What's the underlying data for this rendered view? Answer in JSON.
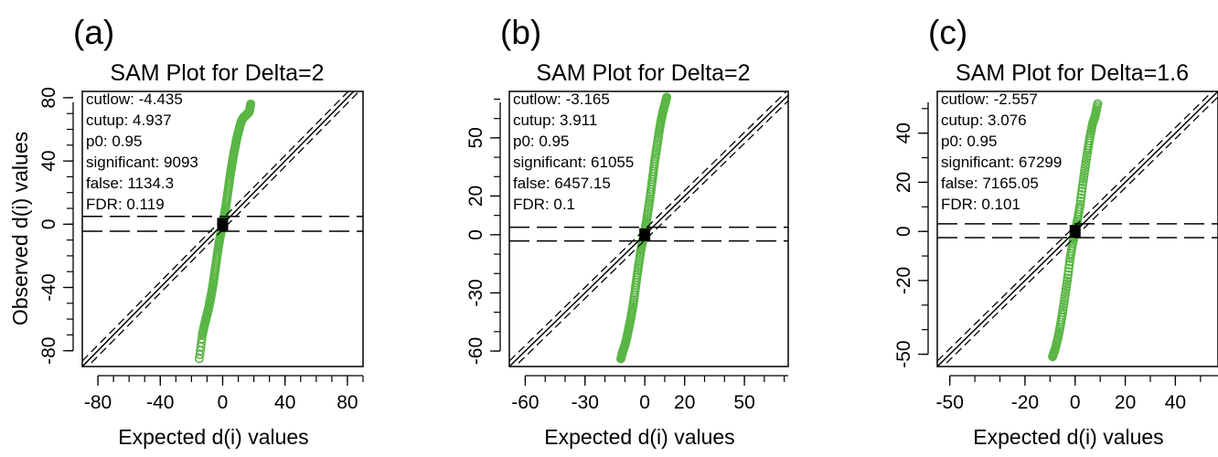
{
  "figure": {
    "ylabel": "Observed d(i) values",
    "xlabel": "Expected d(i) values"
  },
  "chart_data": [
    {
      "type": "scatter",
      "panel_label": "(a)",
      "title": "SAM Plot for Delta=2",
      "xlabel": "Expected d(i) values",
      "ylabel": "Observed d(i) values",
      "xlim": [
        -90,
        90
      ],
      "ylim": [
        -90,
        84
      ],
      "xticks": [
        -80,
        -40,
        0,
        40,
        80
      ],
      "yticks": [
        -80,
        -40,
        0,
        40,
        80
      ],
      "xtick_labels": [
        "-80",
        "-40",
        "0",
        "40",
        "80"
      ],
      "ytick_labels": [
        "-80",
        "-40",
        "0",
        "40",
        "80"
      ],
      "x_minor_step": 10,
      "y_minor_step": 10,
      "cutup": 4.937,
      "cutlow": -4.435,
      "stats": [
        "cutlow: -4.435",
        "cutup: 4.937",
        "p0: 0.95",
        "significant: 9093",
        "false: 1134.3",
        "FDR: 0.119"
      ],
      "series": [
        {
          "color": "#5ab645",
          "type": "scatter",
          "x": [
            -15,
            -13,
            -12,
            -11,
            -10,
            -9,
            -8,
            -7,
            -6,
            -5,
            -4,
            -3,
            -2,
            -1,
            0,
            1,
            2,
            3,
            4,
            5,
            6,
            7,
            8,
            9,
            10,
            11,
            12,
            13,
            14,
            15,
            16,
            17,
            18
          ],
          "y": [
            -85,
            -70,
            -65,
            -61,
            -57,
            -53,
            -48,
            -43,
            -37,
            -30,
            -23,
            -16,
            -10,
            -5,
            0,
            5,
            11,
            18,
            25,
            32,
            38,
            44,
            49,
            54,
            58,
            62,
            65,
            67,
            68,
            69,
            70,
            71,
            76
          ]
        },
        {
          "color": "#000000",
          "type": "line",
          "x": [
            -90,
            90
          ],
          "y": [
            -90,
            90
          ]
        }
      ]
    },
    {
      "type": "scatter",
      "panel_label": "(b)",
      "title": "SAM Plot for Delta=2",
      "xlabel": "Expected d(i) values",
      "ylabel": "Observed d(i) values",
      "xlim": [
        -68,
        72
      ],
      "ylim": [
        -68,
        74
      ],
      "xticks": [
        -60,
        -30,
        0,
        20,
        50
      ],
      "yticks": [
        -60,
        -30,
        0,
        20,
        50
      ],
      "xtick_labels": [
        "-60",
        "-30",
        "0",
        "20",
        "50"
      ],
      "ytick_labels": [
        "-60",
        "-30",
        "0",
        "20",
        "50"
      ],
      "x_minor_step": 10,
      "y_minor_step": 10,
      "cutup": 3.911,
      "cutlow": -3.165,
      "stats": [
        "cutlow: -3.165",
        "cutup: 3.911",
        "p0: 0.95",
        "significant: 61055",
        "false: 6457.15",
        "FDR: 0.1"
      ],
      "series": [
        {
          "color": "#5ab645",
          "type": "scatter",
          "x": [
            -12,
            -11,
            -10,
            -9,
            -8,
            -7,
            -6,
            -5,
            -4,
            -3,
            -2,
            -1,
            0,
            1,
            2,
            3,
            4,
            5,
            6,
            7,
            8,
            9,
            10,
            11
          ],
          "y": [
            -64,
            -60,
            -57,
            -53,
            -48,
            -43,
            -37,
            -30,
            -22,
            -15,
            -8,
            -3,
            2,
            8,
            15,
            22,
            30,
            38,
            45,
            52,
            58,
            63,
            67,
            71
          ]
        },
        {
          "color": "#000000",
          "type": "line",
          "x": [
            -68,
            72
          ],
          "y": [
            -68,
            72
          ]
        }
      ]
    },
    {
      "type": "scatter",
      "panel_label": "(c)",
      "title": "SAM Plot for Delta=1.6",
      "xlabel": "Expected d(i) values",
      "ylabel": "Observed d(i) values",
      "xlim": [
        -55,
        57
      ],
      "ylim": [
        -55,
        57
      ],
      "xticks": [
        -50,
        -20,
        0,
        20,
        40
      ],
      "yticks": [
        -50,
        -20,
        0,
        20,
        40
      ],
      "xtick_labels": [
        "-50",
        "-20",
        "0",
        "20",
        "40"
      ],
      "ytick_labels": [
        "-50",
        "-20",
        "0",
        "20",
        "40"
      ],
      "x_minor_step": 10,
      "y_minor_step": 10,
      "cutup": 3.076,
      "cutlow": -2.557,
      "stats": [
        "cutlow: -2.557",
        "cutup: 3.076",
        "p0: 0.95",
        "significant: 67299",
        "false: 7165.05",
        "FDR: 0.101"
      ],
      "series": [
        {
          "color": "#5ab645",
          "type": "scatter",
          "x": [
            -9,
            -8,
            -7,
            -6,
            -5,
            -4,
            -3,
            -2,
            -1,
            0,
            1,
            2,
            3,
            4,
            5,
            6,
            7,
            8,
            9
          ],
          "y": [
            -51,
            -48,
            -44,
            -39,
            -33,
            -26,
            -19,
            -11,
            -5,
            0,
            5,
            11,
            19,
            26,
            33,
            39,
            44,
            47,
            52
          ]
        },
        {
          "color": "#000000",
          "type": "line",
          "x": [
            -55,
            57
          ],
          "y": [
            -55,
            57
          ]
        }
      ]
    }
  ]
}
